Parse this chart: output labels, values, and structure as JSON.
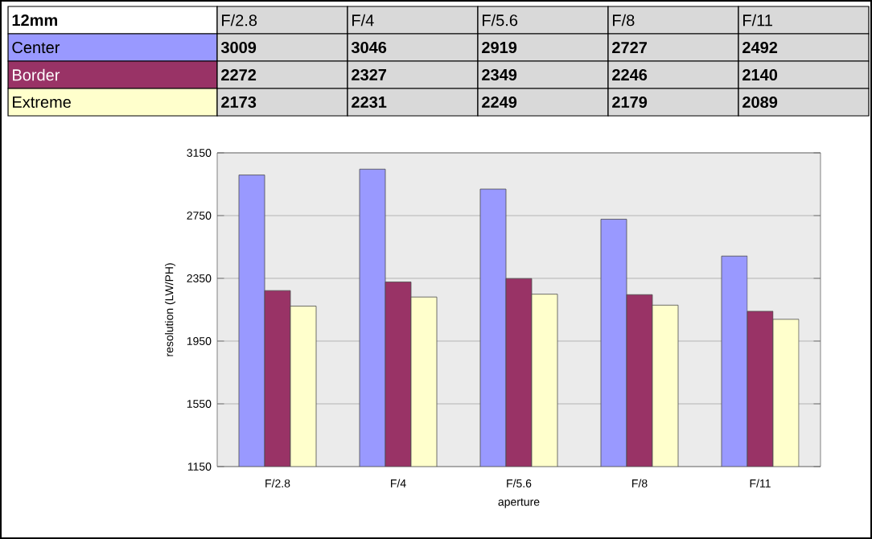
{
  "chart_data": {
    "type": "bar",
    "title": "12mm",
    "xlabel": "aperture",
    "ylabel": "resolution (LW/PH)",
    "categories": [
      "F/2.8",
      "F/4",
      "F/5.6",
      "F/8",
      "F/11"
    ],
    "series": [
      {
        "name": "Center",
        "color": "#9999ff",
        "values": [
          3009,
          3046,
          2919,
          2727,
          2492
        ]
      },
      {
        "name": "Border",
        "color": "#993366",
        "values": [
          2272,
          2327,
          2349,
          2246,
          2140
        ]
      },
      {
        "name": "Extreme",
        "color": "#ffffcc",
        "values": [
          2173,
          2231,
          2249,
          2179,
          2089
        ]
      }
    ],
    "ylim": [
      1150,
      3150
    ],
    "yticks": [
      1150,
      1550,
      1950,
      2350,
      2750,
      3150
    ],
    "grid": "y",
    "data_labels": true
  }
}
